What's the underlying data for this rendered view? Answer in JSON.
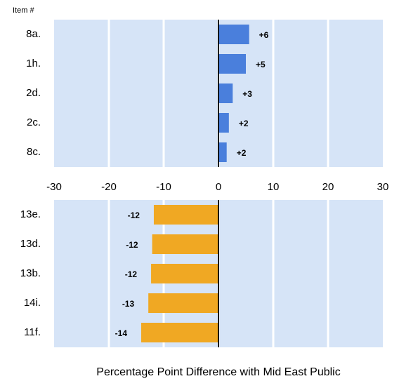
{
  "chart_data": [
    {
      "type": "bar",
      "orientation": "horizontal",
      "ylabel": "Item #",
      "categories": [
        "8a.",
        "1h.",
        "2d.",
        "2c.",
        "8c."
      ],
      "values": [
        5.6,
        5.0,
        2.6,
        1.9,
        1.5
      ],
      "value_labels": [
        "+6",
        "+5",
        "+3",
        "+2",
        "+2"
      ],
      "color": "#4a7fdc",
      "xlim": [
        -30,
        30
      ],
      "xticks": [
        -30,
        -20,
        -10,
        0,
        10,
        20,
        30
      ],
      "grid": true,
      "tick_labels": true
    },
    {
      "type": "bar",
      "orientation": "horizontal",
      "xlabel": "Percentage Point Difference with Mid East Public",
      "categories": [
        "13e.",
        "13d.",
        "13b.",
        "14i.",
        "11f."
      ],
      "values": [
        -11.8,
        -12.1,
        -12.3,
        -12.8,
        -14.1
      ],
      "value_labels": [
        "-12",
        "-12",
        "-12",
        "-13",
        "-14"
      ],
      "color": "#f0a823",
      "xlim": [
        -30,
        30
      ],
      "xticks": [
        -30,
        -20,
        -10,
        0,
        10,
        20,
        30
      ],
      "grid": true,
      "tick_labels": false
    }
  ]
}
